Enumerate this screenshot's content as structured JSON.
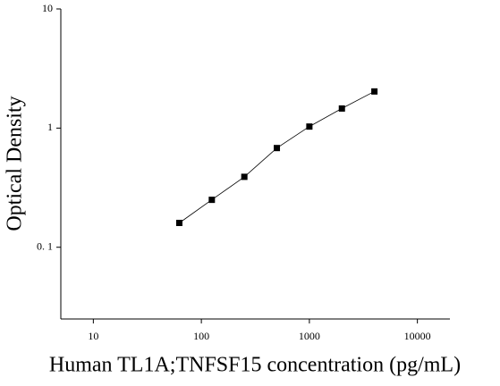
{
  "chart_data": {
    "type": "scatter",
    "x_label": "Human TL1A;TNFSF15 concentration (pg/mL)",
    "y_label": "Optical Density",
    "x": [
      62.5,
      125,
      250,
      500,
      1000,
      2000,
      4000
    ],
    "series": [
      {
        "color": "#000000",
        "values": [
          0.16,
          0.25,
          0.39,
          0.68,
          1.03,
          1.46,
          2.03
        ]
      }
    ],
    "xlim": [
      5,
      20000
    ],
    "ylim": [
      0.025,
      10
    ],
    "xticks": [
      10,
      100,
      1000,
      10000
    ],
    "yticks": [
      {
        "value": 0.1,
        "label": "0. 1"
      },
      1,
      10
    ],
    "xscale": "log",
    "yscale": "log",
    "grid": false
  }
}
